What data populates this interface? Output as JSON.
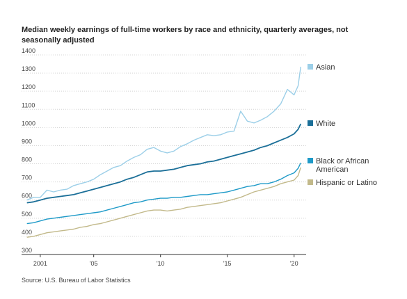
{
  "chart_data": {
    "type": "line",
    "title": "Median weekly earnings of full-time workers by race and ethnicity, quarterly averages, not seasonally adjusted",
    "source": "Source: U.S. Bureau of Labor Statistics",
    "xlabel": "",
    "ylabel": "",
    "x_ticks": [
      {
        "value": 2001,
        "label": "2001"
      },
      {
        "value": 2005,
        "label": "'05"
      },
      {
        "value": 2010,
        "label": "'10"
      },
      {
        "value": 2015,
        "label": "'15"
      },
      {
        "value": 2020,
        "label": "'20"
      }
    ],
    "xlim": [
      1999.6,
      2020.9
    ],
    "ylim": [
      300,
      1400
    ],
    "y_ticks": [
      300,
      400,
      500,
      600,
      700,
      800,
      900,
      1000,
      1100,
      1200,
      1300,
      1400
    ],
    "grid": true,
    "legend": "right-inline",
    "series": [
      {
        "name": "Asian",
        "color": "#9ccfe8",
        "legend_lines": [
          "Asian"
        ],
        "values": [
          [
            2000,
            600
          ],
          [
            2000.5,
            615
          ],
          [
            2001,
            615
          ],
          [
            2001.5,
            655
          ],
          [
            2002,
            645
          ],
          [
            2002.5,
            655
          ],
          [
            2003,
            660
          ],
          [
            2003.5,
            680
          ],
          [
            2004,
            690
          ],
          [
            2004.5,
            700
          ],
          [
            2005,
            715
          ],
          [
            2005.5,
            740
          ],
          [
            2006,
            760
          ],
          [
            2006.5,
            780
          ],
          [
            2007,
            790
          ],
          [
            2007.5,
            815
          ],
          [
            2008,
            835
          ],
          [
            2008.5,
            850
          ],
          [
            2009,
            880
          ],
          [
            2009.5,
            890
          ],
          [
            2010,
            870
          ],
          [
            2010.5,
            860
          ],
          [
            2011,
            870
          ],
          [
            2011.5,
            895
          ],
          [
            2012,
            910
          ],
          [
            2012.5,
            930
          ],
          [
            2013,
            945
          ],
          [
            2013.5,
            960
          ],
          [
            2014,
            955
          ],
          [
            2014.5,
            960
          ],
          [
            2015,
            975
          ],
          [
            2015.5,
            980
          ],
          [
            2016,
            1090
          ],
          [
            2016.5,
            1035
          ],
          [
            2017,
            1025
          ],
          [
            2017.5,
            1040
          ],
          [
            2018,
            1060
          ],
          [
            2018.5,
            1090
          ],
          [
            2019,
            1130
          ],
          [
            2019.5,
            1210
          ],
          [
            2020,
            1180
          ],
          [
            2020.3,
            1230
          ],
          [
            2020.5,
            1335
          ]
        ]
      },
      {
        "name": "White",
        "color": "#1b6f98",
        "legend_lines": [
          "White"
        ],
        "values": [
          [
            2000,
            585
          ],
          [
            2000.5,
            590
          ],
          [
            2001,
            600
          ],
          [
            2001.5,
            610
          ],
          [
            2002,
            615
          ],
          [
            2002.5,
            620
          ],
          [
            2003,
            625
          ],
          [
            2003.5,
            630
          ],
          [
            2004,
            640
          ],
          [
            2004.5,
            650
          ],
          [
            2005,
            660
          ],
          [
            2005.5,
            670
          ],
          [
            2006,
            680
          ],
          [
            2006.5,
            690
          ],
          [
            2007,
            700
          ],
          [
            2007.5,
            715
          ],
          [
            2008,
            725
          ],
          [
            2008.5,
            740
          ],
          [
            2009,
            755
          ],
          [
            2009.5,
            760
          ],
          [
            2010,
            760
          ],
          [
            2010.5,
            765
          ],
          [
            2011,
            770
          ],
          [
            2011.5,
            780
          ],
          [
            2012,
            790
          ],
          [
            2012.5,
            795
          ],
          [
            2013,
            800
          ],
          [
            2013.5,
            810
          ],
          [
            2014,
            815
          ],
          [
            2014.5,
            825
          ],
          [
            2015,
            835
          ],
          [
            2015.5,
            845
          ],
          [
            2016,
            855
          ],
          [
            2016.5,
            865
          ],
          [
            2017,
            875
          ],
          [
            2017.5,
            890
          ],
          [
            2018,
            900
          ],
          [
            2018.5,
            915
          ],
          [
            2019,
            930
          ],
          [
            2019.5,
            945
          ],
          [
            2020,
            965
          ],
          [
            2020.3,
            990
          ],
          [
            2020.5,
            1020
          ]
        ]
      },
      {
        "name": "Black or African American",
        "color": "#1e9ac8",
        "legend_lines": [
          "Black or African",
          "American"
        ],
        "values": [
          [
            2000,
            470
          ],
          [
            2000.5,
            475
          ],
          [
            2001,
            485
          ],
          [
            2001.5,
            495
          ],
          [
            2002,
            500
          ],
          [
            2002.5,
            505
          ],
          [
            2003,
            510
          ],
          [
            2003.5,
            515
          ],
          [
            2004,
            520
          ],
          [
            2004.5,
            525
          ],
          [
            2005,
            530
          ],
          [
            2005.5,
            535
          ],
          [
            2006,
            545
          ],
          [
            2006.5,
            555
          ],
          [
            2007,
            565
          ],
          [
            2007.5,
            575
          ],
          [
            2008,
            585
          ],
          [
            2008.5,
            590
          ],
          [
            2009,
            600
          ],
          [
            2009.5,
            605
          ],
          [
            2010,
            610
          ],
          [
            2010.5,
            610
          ],
          [
            2011,
            615
          ],
          [
            2011.5,
            615
          ],
          [
            2012,
            620
          ],
          [
            2012.5,
            625
          ],
          [
            2013,
            630
          ],
          [
            2013.5,
            630
          ],
          [
            2014,
            635
          ],
          [
            2014.5,
            640
          ],
          [
            2015,
            645
          ],
          [
            2015.5,
            655
          ],
          [
            2016,
            665
          ],
          [
            2016.5,
            675
          ],
          [
            2017,
            680
          ],
          [
            2017.5,
            690
          ],
          [
            2018,
            690
          ],
          [
            2018.5,
            700
          ],
          [
            2019,
            715
          ],
          [
            2019.5,
            735
          ],
          [
            2020,
            750
          ],
          [
            2020.3,
            775
          ],
          [
            2020.5,
            805
          ]
        ]
      },
      {
        "name": "Hispanic or Latino",
        "color": "#c2b98a",
        "legend_lines": [
          "Hispanic or Latino"
        ],
        "values": [
          [
            2000,
            395
          ],
          [
            2000.5,
            400
          ],
          [
            2001,
            410
          ],
          [
            2001.5,
            420
          ],
          [
            2002,
            425
          ],
          [
            2002.5,
            430
          ],
          [
            2003,
            435
          ],
          [
            2003.5,
            440
          ],
          [
            2004,
            450
          ],
          [
            2004.5,
            455
          ],
          [
            2005,
            465
          ],
          [
            2005.5,
            470
          ],
          [
            2006,
            480
          ],
          [
            2006.5,
            490
          ],
          [
            2007,
            500
          ],
          [
            2007.5,
            510
          ],
          [
            2008,
            520
          ],
          [
            2008.5,
            530
          ],
          [
            2009,
            540
          ],
          [
            2009.5,
            545
          ],
          [
            2010,
            545
          ],
          [
            2010.5,
            540
          ],
          [
            2011,
            545
          ],
          [
            2011.5,
            550
          ],
          [
            2012,
            560
          ],
          [
            2012.5,
            565
          ],
          [
            2013,
            570
          ],
          [
            2013.5,
            575
          ],
          [
            2014,
            580
          ],
          [
            2014.5,
            585
          ],
          [
            2015,
            595
          ],
          [
            2015.5,
            605
          ],
          [
            2016,
            615
          ],
          [
            2016.5,
            630
          ],
          [
            2017,
            645
          ],
          [
            2017.5,
            655
          ],
          [
            2018,
            665
          ],
          [
            2018.5,
            675
          ],
          [
            2019,
            690
          ],
          [
            2019.5,
            700
          ],
          [
            2020,
            710
          ],
          [
            2020.3,
            735
          ],
          [
            2020.5,
            780
          ]
        ]
      }
    ]
  }
}
